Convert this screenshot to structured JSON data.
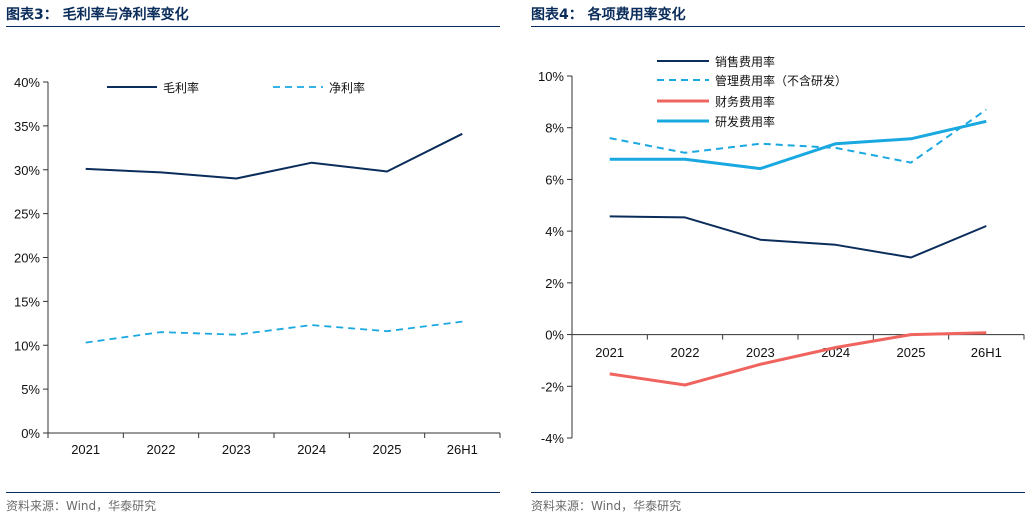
{
  "left": {
    "title": "图表3：   毛利率与净利率变化",
    "source": "资料来源：Wind，华泰研究"
  },
  "right": {
    "title": "图表4：   各项费用率变化",
    "source": "资料来源：Wind，华泰研究"
  },
  "colors": {
    "navy": "#0b2d5b",
    "light_blue": "#1aa8e0",
    "red": "#f0645f",
    "rule": "#0b2d5b"
  },
  "chart_data": [
    {
      "type": "line",
      "categories": [
        "2021",
        "2022",
        "2023",
        "2024",
        "2025",
        "26H1"
      ],
      "y_ticks": [
        "0%",
        "5%",
        "10%",
        "15%",
        "20%",
        "25%",
        "30%",
        "35%",
        "40%"
      ],
      "ylim": [
        0,
        40
      ],
      "grid": false,
      "legend_position": "top",
      "series": [
        {
          "name": "毛利率",
          "values": [
            30.1,
            29.7,
            29.0,
            30.8,
            29.8,
            34.1
          ],
          "color": "#0b2d5b",
          "style": "solid"
        },
        {
          "name": "净利率",
          "values": [
            10.3,
            11.5,
            11.2,
            12.3,
            11.6,
            12.7
          ],
          "color": "#1aa8e0",
          "style": "dashed"
        }
      ]
    },
    {
      "type": "line",
      "categories": [
        "2021",
        "2022",
        "2023",
        "2024",
        "2025",
        "26H1"
      ],
      "y_ticks": [
        "-4%",
        "-2%",
        "0%",
        "2%",
        "4%",
        "6%",
        "8%",
        "10%"
      ],
      "ylim": [
        -4,
        10
      ],
      "grid": false,
      "legend_position": "top",
      "series": [
        {
          "name": "销售费用率",
          "values": [
            4.57,
            4.53,
            3.67,
            3.47,
            2.98,
            4.2
          ],
          "color": "#0b2d5b",
          "style": "solid"
        },
        {
          "name": "管理费用率（不含研发）",
          "values": [
            7.6,
            7.03,
            7.38,
            7.22,
            6.65,
            8.7
          ],
          "color": "#1aa8e0",
          "style": "dashed"
        },
        {
          "name": "财务费用率",
          "values": [
            -1.52,
            -1.95,
            -1.15,
            -0.5,
            0.0,
            0.07
          ],
          "color": "#f0645f",
          "style": "solid"
        },
        {
          "name": "研发费用率",
          "values": [
            6.78,
            6.78,
            6.42,
            7.38,
            7.57,
            8.25
          ],
          "color": "#1aa8e0",
          "style": "solid"
        }
      ]
    }
  ]
}
